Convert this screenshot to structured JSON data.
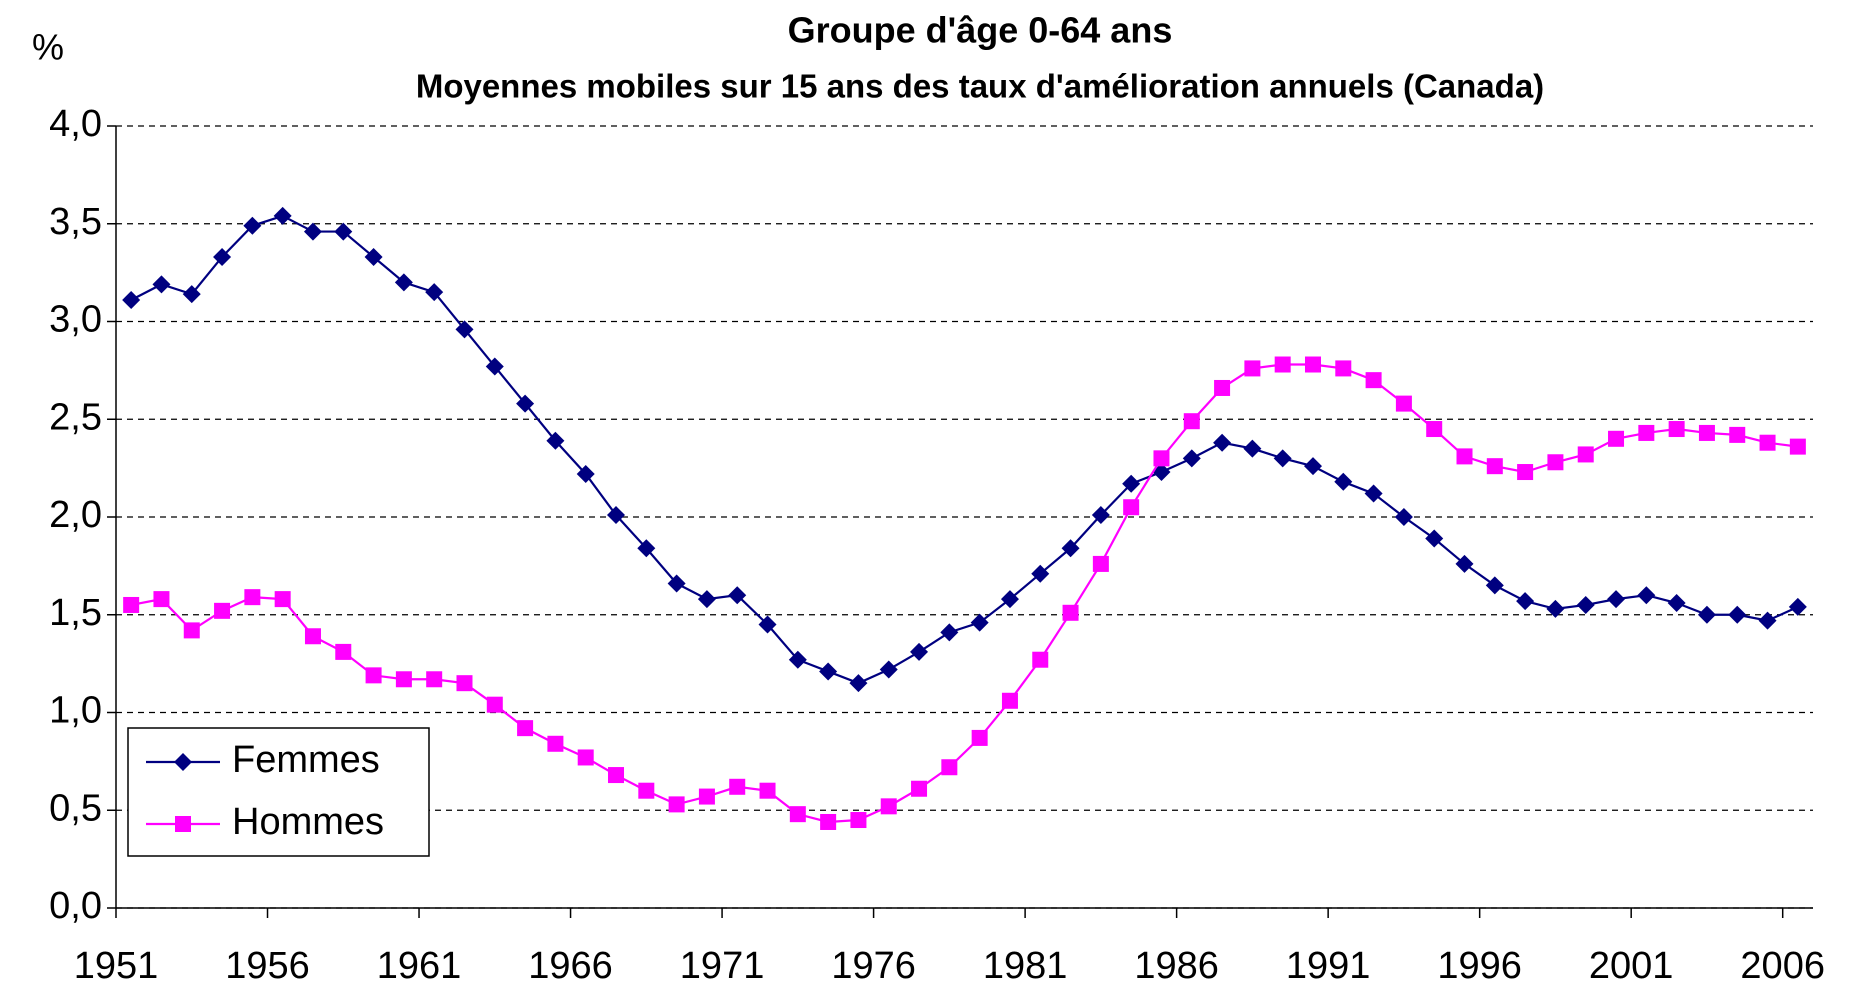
{
  "chart_data": {
    "type": "line",
    "title": "Groupe d'âge 0-64 ans",
    "subtitle": "Moyennes mobiles sur 15 ans des taux d'amélioration annuels  (Canada)",
    "y_label": "%",
    "categories": [
      "1951",
      null,
      null,
      null,
      null,
      "1956",
      null,
      null,
      null,
      null,
      "1961",
      null,
      null,
      null,
      null,
      "1966",
      null,
      null,
      null,
      null,
      "1971",
      null,
      null,
      null,
      null,
      "1976",
      null,
      null,
      null,
      null,
      "1981",
      null,
      null,
      null,
      null,
      "1986",
      null,
      null,
      null,
      null,
      "1991",
      null,
      null,
      null,
      null,
      "1996",
      null,
      null,
      null,
      null,
      "2001",
      null,
      null,
      null,
      null,
      "2006"
    ],
    "series": [
      {
        "name": "Femmes",
        "color": "#000080",
        "marker": "diamond",
        "values": [
          3.11,
          3.19,
          3.14,
          3.33,
          3.49,
          3.54,
          3.46,
          3.46,
          3.33,
          3.2,
          3.15,
          2.96,
          2.77,
          2.58,
          2.39,
          2.22,
          2.01,
          1.84,
          1.66,
          1.58,
          1.6,
          1.45,
          1.27,
          1.21,
          1.15,
          1.22,
          1.31,
          1.41,
          1.46,
          1.58,
          1.71,
          1.84,
          2.01,
          2.17,
          2.23,
          2.3,
          2.38,
          2.35,
          2.3,
          2.26,
          2.18,
          2.12,
          2.0,
          1.89,
          1.76,
          1.65,
          1.57,
          1.53,
          1.55,
          1.58,
          1.6,
          1.56,
          1.5,
          1.5,
          1.47,
          1.54
        ]
      },
      {
        "name": "Hommes",
        "color": "#ff00ff",
        "marker": "square",
        "values": [
          1.55,
          1.58,
          1.42,
          1.52,
          1.59,
          1.58,
          1.39,
          1.31,
          1.19,
          1.17,
          1.17,
          1.15,
          1.04,
          0.92,
          0.84,
          0.77,
          0.68,
          0.6,
          0.53,
          0.57,
          0.62,
          0.6,
          0.48,
          0.44,
          0.45,
          0.52,
          0.61,
          0.72,
          0.87,
          1.06,
          1.27,
          1.51,
          1.76,
          2.05,
          2.3,
          2.49,
          2.66,
          2.76,
          2.78,
          2.78,
          2.76,
          2.7,
          2.58,
          2.45,
          2.31,
          2.26,
          2.23,
          2.28,
          2.32,
          2.4,
          2.43,
          2.45,
          2.43,
          2.42,
          2.38,
          2.36
        ]
      }
    ],
    "ylim": [
      0,
      4
    ],
    "yticks": [
      {
        "value": 0,
        "label": "0,0"
      },
      {
        "value": 0.5,
        "label": "0,5"
      },
      {
        "value": 1,
        "label": "1,0"
      },
      {
        "value": 1.5,
        "label": "1,5"
      },
      {
        "value": 2,
        "label": "2,0"
      },
      {
        "value": 2.5,
        "label": "2,5"
      },
      {
        "value": 3,
        "label": "3,0"
      },
      {
        "value": 3.5,
        "label": "3,5"
      },
      {
        "value": 4,
        "label": "4,0"
      }
    ],
    "grid": true,
    "legend": "lower left"
  }
}
